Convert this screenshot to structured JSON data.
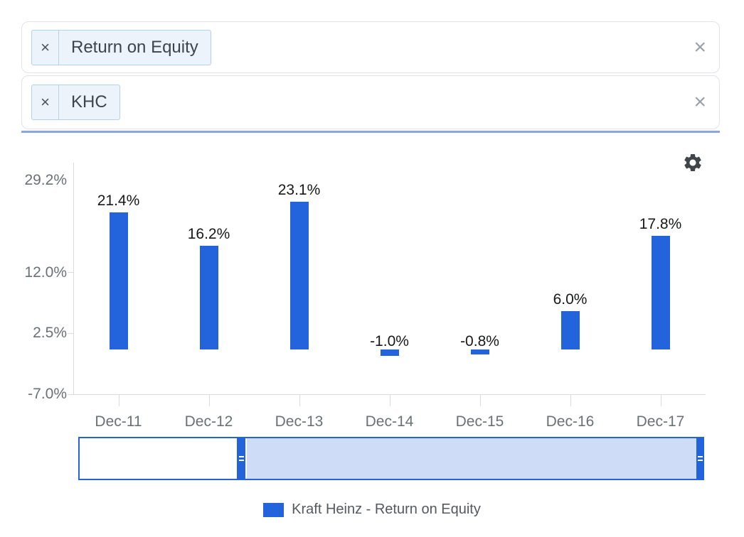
{
  "filters": {
    "metric": {
      "tag_label": "Return on Equity"
    },
    "company": {
      "tag_label": "KHC"
    }
  },
  "icons": {
    "tag_remove_glyph": "×",
    "clear_glyph": "×",
    "settings_icon": "gear-icon",
    "navigator_handle_icon": "drag-handle-icon"
  },
  "colors": {
    "accent_blue": "#2363dc",
    "navigator_fill": "#cfdcf7",
    "axis_gray": "#d9dcdf",
    "label_gray": "#6a7175",
    "underline_blue": "#8ba6e2",
    "tag_background": "#edf3fa",
    "tag_border": "#b5d2ec"
  },
  "chart_data": {
    "type": "bar",
    "title": "",
    "xlabel": "",
    "ylabel": "",
    "categories": [
      "Dec-11",
      "Dec-12",
      "Dec-13",
      "Dec-14",
      "Dec-15",
      "Dec-16",
      "Dec-17"
    ],
    "series": [
      {
        "name": "Kraft Heinz - Return on Equity",
        "values": [
          21.4,
          16.2,
          23.1,
          -1.0,
          -0.8,
          6.0,
          17.8
        ],
        "value_labels": [
          "21.4%",
          "16.2%",
          "23.1%",
          "-1.0%",
          "-0.8%",
          "6.0%",
          "17.8%"
        ],
        "color": "#2363dc"
      }
    ],
    "y_ticks": [
      {
        "value": 29.2,
        "label": "29.2%"
      },
      {
        "value": 12.0,
        "label": "12.0%"
      },
      {
        "value": 2.5,
        "label": "2.5%"
      },
      {
        "value": -7.0,
        "label": "-7.0%"
      }
    ],
    "ylim": [
      -7.0,
      29.2
    ],
    "grid": false,
    "legend_position": "bottom",
    "navigator": {
      "selected_range": [
        "Dec-13",
        "Dec-17"
      ]
    }
  }
}
